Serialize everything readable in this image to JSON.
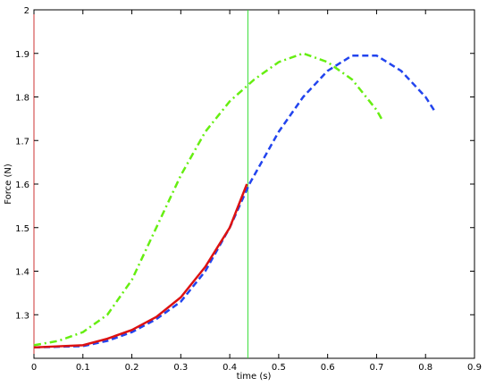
{
  "chart_data": {
    "type": "line",
    "xlabel": "time (s)",
    "ylabel": "Force (N)",
    "xlim": [
      0,
      0.9
    ],
    "ylim": [
      1.2,
      2
    ],
    "xticks": [
      0,
      0.1,
      0.2,
      0.3,
      0.4,
      0.5,
      0.6,
      0.7,
      0.8,
      0.9
    ],
    "yticks": [
      1.3,
      1.4,
      1.5,
      1.6,
      1.7,
      1.8,
      1.9,
      2
    ],
    "vlines": [
      {
        "value": 0.437,
        "color": "#33dd33"
      }
    ],
    "series": [
      {
        "color": "#66ee11",
        "style": "dashdot",
        "x": [
          0,
          0.05,
          0.1,
          0.15,
          0.2,
          0.25,
          0.3,
          0.35,
          0.4,
          0.45,
          0.5,
          0.55,
          0.6,
          0.65,
          0.7,
          0.71
        ],
        "values": [
          1.23,
          1.24,
          1.26,
          1.3,
          1.38,
          1.5,
          1.62,
          1.72,
          1.79,
          1.84,
          1.88,
          1.9,
          1.88,
          1.84,
          1.77,
          1.75
        ]
      },
      {
        "color": "#2244ee",
        "style": "dashed",
        "x": [
          0,
          0.1,
          0.15,
          0.2,
          0.25,
          0.3,
          0.35,
          0.4,
          0.44,
          0.5,
          0.55,
          0.6,
          0.65,
          0.7,
          0.75,
          0.8,
          0.82
        ],
        "values": [
          1.225,
          1.228,
          1.24,
          1.26,
          1.29,
          1.33,
          1.4,
          1.5,
          1.6,
          1.72,
          1.8,
          1.86,
          1.895,
          1.895,
          1.86,
          1.8,
          1.765
        ]
      },
      {
        "color": "#dd1111",
        "style": "solid",
        "x": [
          0,
          0.1,
          0.15,
          0.2,
          0.25,
          0.3,
          0.35,
          0.4,
          0.435
        ],
        "values": [
          1.225,
          1.23,
          1.245,
          1.265,
          1.295,
          1.34,
          1.41,
          1.5,
          1.6
        ]
      }
    ]
  }
}
